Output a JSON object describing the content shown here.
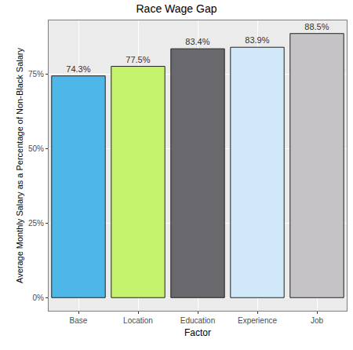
{
  "chart_data": {
    "type": "bar",
    "title": "Race Wage Gap",
    "x_label": "Factor",
    "y_label": "Average Monthly Salary as a Percentage of Non-Black Salary",
    "categories": [
      "Base",
      "Location",
      "Education",
      "Experience",
      "Job"
    ],
    "values": [
      74.3,
      77.5,
      83.4,
      83.9,
      88.5
    ],
    "value_labels": [
      "74.3%",
      "77.5%",
      "83.4%",
      "83.9%",
      "88.5%"
    ],
    "colors": [
      "#4fb6e8",
      "#c6f36d",
      "#69696d",
      "#d0e8f8",
      "#c5c3c6"
    ],
    "ylim": [
      -4.4,
      92.9
    ],
    "yticks": [
      {
        "value": 0,
        "label": "0%"
      },
      {
        "value": 25,
        "label": "25%"
      },
      {
        "value": 50,
        "label": "50%"
      },
      {
        "value": 75,
        "label": "75%"
      }
    ],
    "grid": true,
    "data_labels": true
  }
}
